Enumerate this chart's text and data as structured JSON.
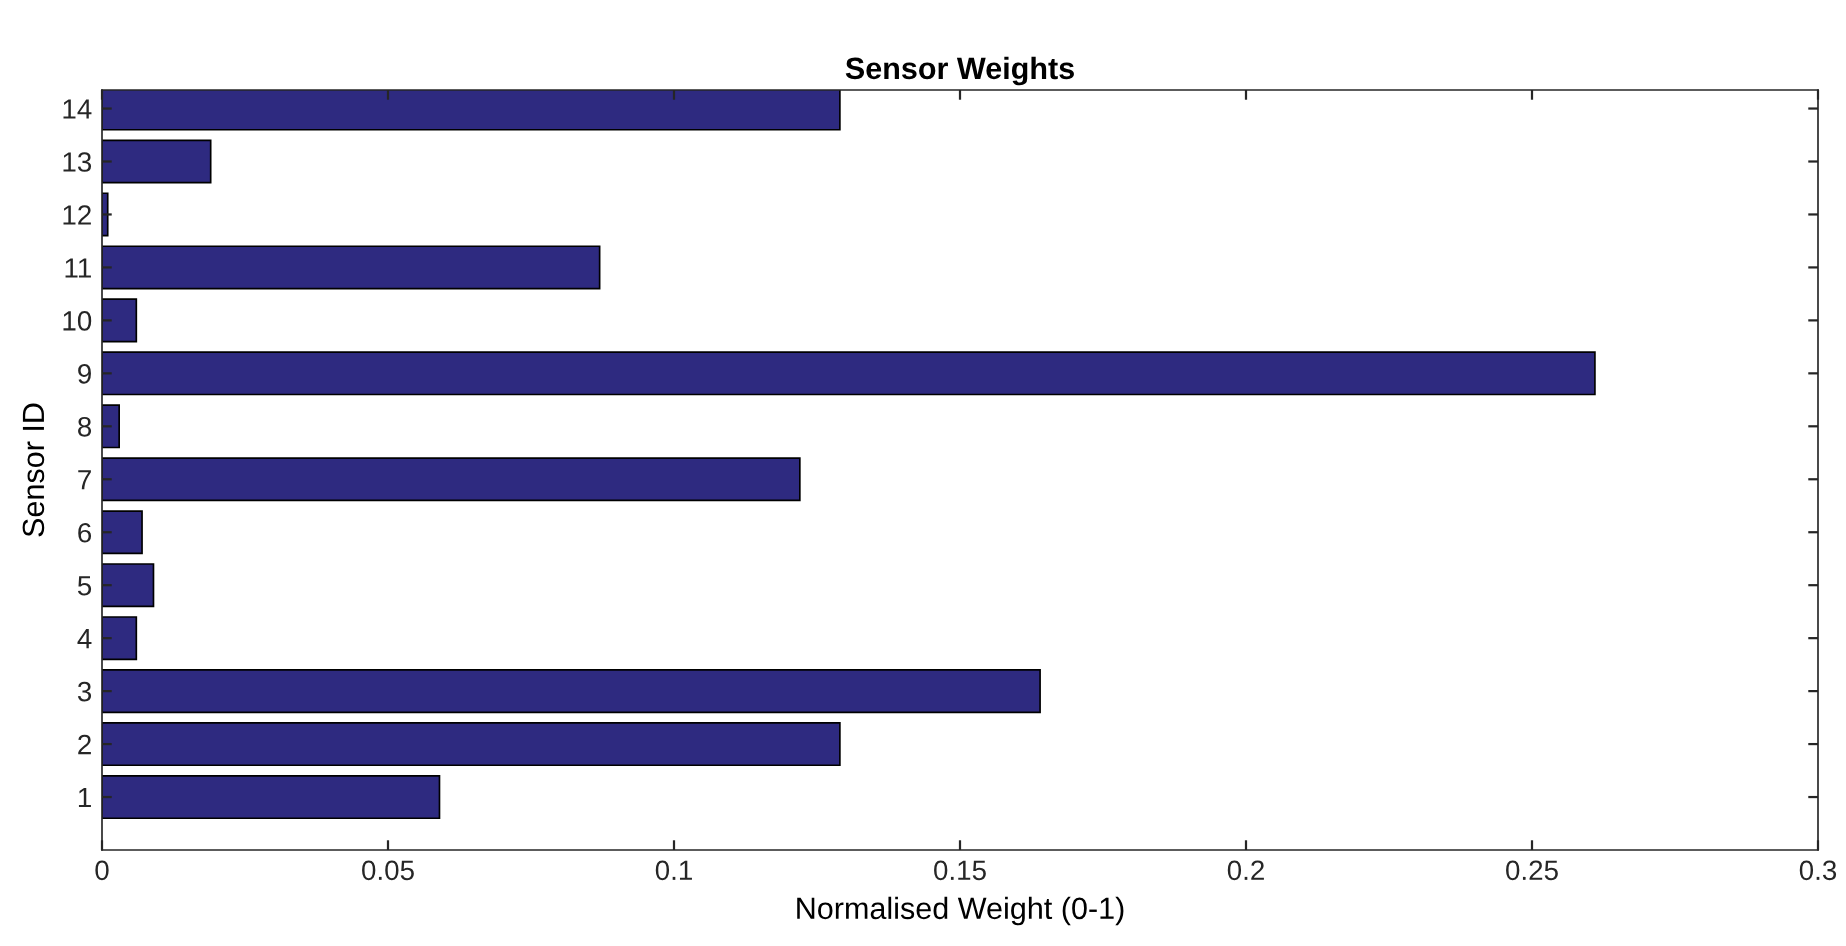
{
  "chart_data": {
    "type": "bar",
    "orientation": "horizontal",
    "title": "Sensor Weights",
    "xlabel": "Normalised Weight (0-1)",
    "ylabel": "Sensor ID",
    "categories": [
      "14",
      "13",
      "12",
      "11",
      "10",
      "9",
      "8",
      "7",
      "6",
      "5",
      "4",
      "3",
      "2",
      "1"
    ],
    "values": [
      0.129,
      0.019,
      0.001,
      0.087,
      0.006,
      0.261,
      0.003,
      0.122,
      0.007,
      0.009,
      0.006,
      0.164,
      0.129,
      0.059
    ],
    "color": "#2e2a80",
    "xlim": [
      0,
      0.3
    ],
    "xticks": [
      0,
      0.05,
      0.1,
      0.15,
      0.2,
      0.25,
      0.3
    ],
    "grid": false,
    "legend": false
  }
}
